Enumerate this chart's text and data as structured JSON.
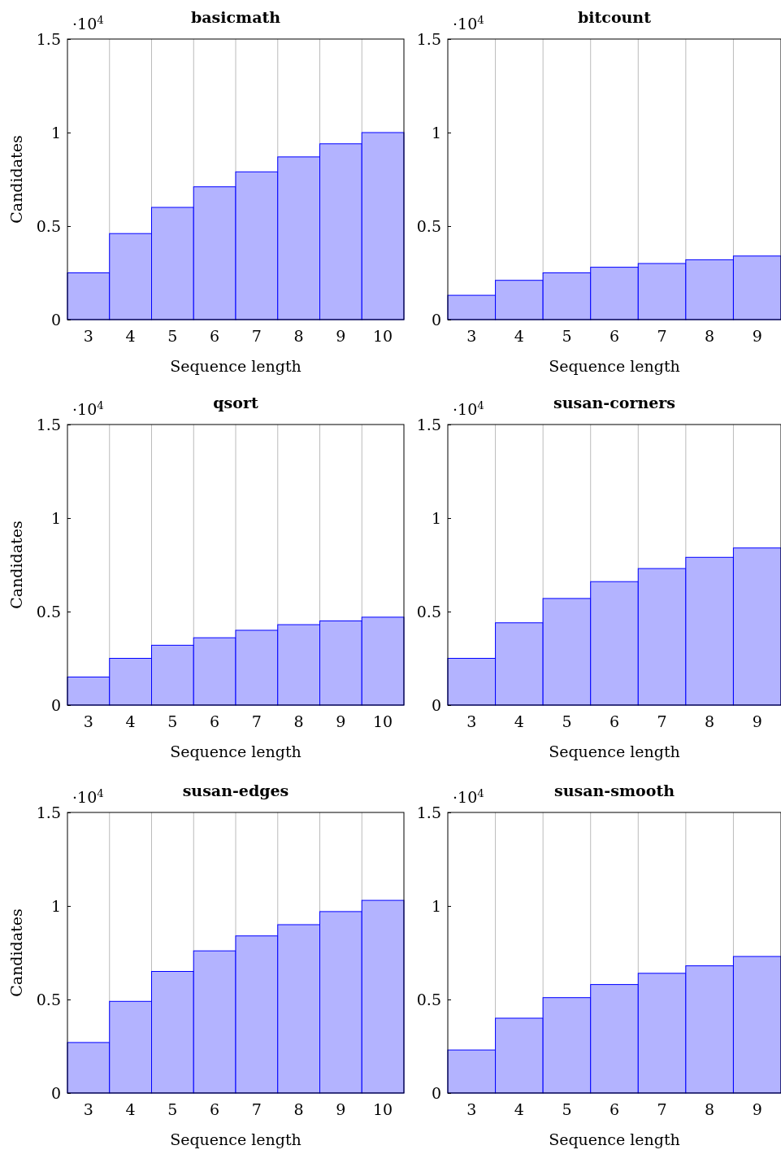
{
  "chart_data": [
    {
      "type": "bar",
      "title": "basicmath",
      "xlabel": "Sequence length",
      "ylabel": "Candidates",
      "categories": [
        "3",
        "4",
        "5",
        "6",
        "7",
        "8",
        "9",
        "10"
      ],
      "values": [
        0.25,
        0.46,
        0.6,
        0.71,
        0.79,
        0.87,
        0.94,
        1.0
      ],
      "color": "#b3b3ff",
      "ylim": [
        0,
        1.5
      ],
      "yticks": [
        0,
        0.5,
        1,
        1.5
      ],
      "grid": "x",
      "annotations": [
        "·10$^{4}$"
      ]
    },
    {
      "type": "bar",
      "title": "bitcount",
      "xlabel": "Sequence length",
      "categories": [
        "3",
        "4",
        "5",
        "6",
        "7",
        "8",
        "9"
      ],
      "values": [
        0.13,
        0.21,
        0.25,
        0.28,
        0.3,
        0.32,
        0.34
      ],
      "color": "#b3b3ff",
      "ylim": [
        0,
        1.5
      ],
      "yticks": [
        0,
        0.5,
        1,
        1.5
      ],
      "grid": "x",
      "annotations": [
        "·10$^{4}$"
      ]
    },
    {
      "type": "bar",
      "title": "qsort",
      "xlabel": "Sequence length",
      "ylabel": "Candidates",
      "categories": [
        "3",
        "4",
        "5",
        "6",
        "7",
        "8",
        "9",
        "10"
      ],
      "values": [
        0.15,
        0.25,
        0.32,
        0.36,
        0.4,
        0.43,
        0.45,
        0.47
      ],
      "color": "#b3b3ff",
      "ylim": [
        0,
        1.5
      ],
      "yticks": [
        0,
        0.5,
        1,
        1.5
      ],
      "grid": "x",
      "annotations": [
        "·10$^{4}$"
      ]
    },
    {
      "type": "bar",
      "title": "susan-corners",
      "xlabel": "Sequence length",
      "categories": [
        "3",
        "4",
        "5",
        "6",
        "7",
        "8",
        "9"
      ],
      "values": [
        0.25,
        0.44,
        0.57,
        0.66,
        0.73,
        0.79,
        0.84
      ],
      "color": "#b3b3ff",
      "ylim": [
        0,
        1.5
      ],
      "yticks": [
        0,
        0.5,
        1,
        1.5
      ],
      "grid": "x",
      "annotations": [
        "·10$^{4}$"
      ]
    },
    {
      "type": "bar",
      "title": "susan-edges",
      "xlabel": "Sequence length",
      "ylabel": "Candidates",
      "categories": [
        "3",
        "4",
        "5",
        "6",
        "7",
        "8",
        "9",
        "10"
      ],
      "values": [
        0.27,
        0.49,
        0.65,
        0.76,
        0.84,
        0.9,
        0.97,
        1.03
      ],
      "color": "#b3b3ff",
      "ylim": [
        0,
        1.5
      ],
      "yticks": [
        0,
        0.5,
        1,
        1.5
      ],
      "grid": "x",
      "annotations": [
        "·10$^{4}$"
      ]
    },
    {
      "type": "bar",
      "title": "susan-smooth",
      "xlabel": "Sequence length",
      "categories": [
        "3",
        "4",
        "5",
        "6",
        "7",
        "8",
        "9"
      ],
      "values": [
        0.23,
        0.4,
        0.51,
        0.58,
        0.64,
        0.68,
        0.73
      ],
      "color": "#b3b3ff",
      "ylim": [
        0,
        1.5
      ],
      "yticks": [
        0,
        0.5,
        1,
        1.5
      ],
      "grid": "x",
      "annotations": [
        "·10$^{4}$"
      ]
    }
  ]
}
